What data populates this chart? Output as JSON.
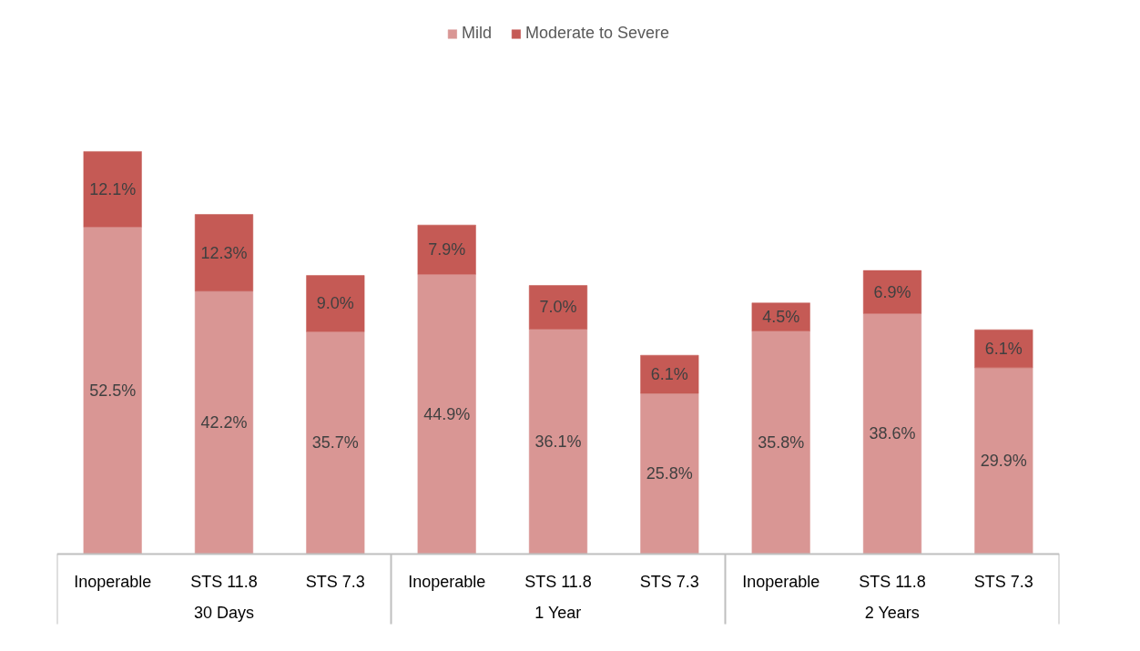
{
  "chart_data": {
    "type": "bar",
    "stacked": true,
    "legend": "top",
    "data_labels": true,
    "categories": [
      "Inoperable",
      "STS 11.8",
      "STS 7.3",
      "Inoperable",
      "STS 11.8",
      "STS 7.3",
      "Inoperable",
      "STS 11.8",
      "STS 7.3"
    ],
    "annotations": [
      "30 Days",
      "1 Year",
      "2 Years"
    ],
    "series": [
      {
        "name": "Mild",
        "color": "#d99694",
        "values": [
          52.5,
          42.2,
          35.7,
          44.9,
          36.1,
          25.8,
          35.8,
          38.6,
          29.9
        ],
        "value_labels": [
          "52.5%",
          "42.2%",
          "35.7%",
          "44.9%",
          "36.1%",
          "25.8%",
          "35.8%",
          "38.6%",
          "29.9%"
        ]
      },
      {
        "name": "Moderate to Severe",
        "color": "#c55a55",
        "values": [
          12.1,
          12.3,
          9.0,
          7.9,
          7.0,
          6.1,
          4.5,
          6.9,
          6.1
        ],
        "value_labels": [
          "12.1%",
          "12.3%",
          "9.0%",
          "7.9%",
          "7.0%",
          "6.1%",
          "4.5%",
          "6.9%",
          "6.1%"
        ]
      }
    ]
  }
}
